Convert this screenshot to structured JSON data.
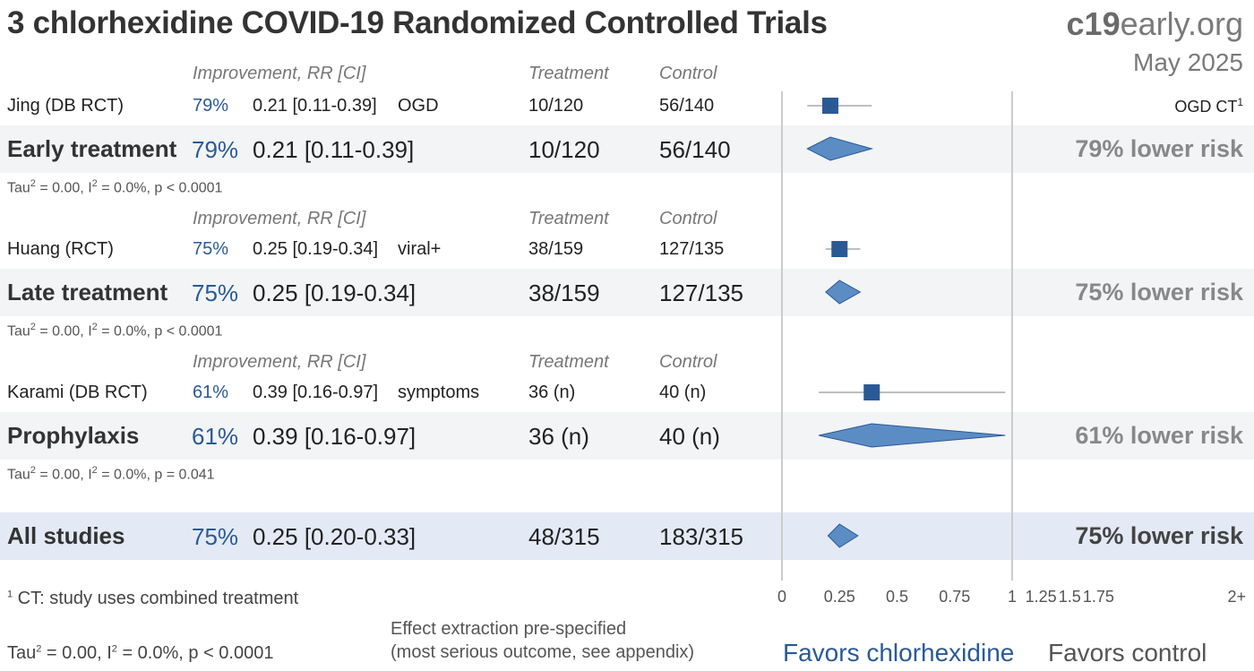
{
  "title": "3 chlorhexidine COVID-19 Randomized Controlled Trials",
  "brand": {
    "bold": "c19",
    "rest": "early.org"
  },
  "date": "May 2025",
  "headers": {
    "improvement": "Improvement, RR [CI]",
    "treatment": "Treatment",
    "control": "Control"
  },
  "groups": [
    {
      "study": {
        "name": "Jing (DB RCT)",
        "improvement": "79%",
        "rr": "0.21 [0.11-0.39]",
        "outcome": "OGD",
        "treatment": "10/120",
        "control": "56/140",
        "note": "OGD CT",
        "note_sup": "1"
      },
      "summary": {
        "label": "Early treatment",
        "improvement": "79%",
        "rr": "0.21 [0.11-0.39]",
        "treatment": "10/120",
        "control": "56/140",
        "risk": "79% lower risk"
      },
      "het": {
        "tau": "Tau",
        "tau_sup": "2",
        "tau_val": " = 0.00, I",
        "i_sup": "2",
        "rest": " = 0.0%, p < 0.0001"
      }
    },
    {
      "study": {
        "name": "Huang (RCT)",
        "improvement": "75%",
        "rr": "0.25 [0.19-0.34]",
        "outcome": "viral+",
        "treatment": "38/159",
        "control": "127/135"
      },
      "summary": {
        "label": "Late treatment",
        "improvement": "75%",
        "rr": "0.25 [0.19-0.34]",
        "treatment": "38/159",
        "control": "127/135",
        "risk": "75% lower risk"
      },
      "het": {
        "tau": "Tau",
        "tau_sup": "2",
        "tau_val": " = 0.00, I",
        "i_sup": "2",
        "rest": " = 0.0%, p < 0.0001"
      }
    },
    {
      "study": {
        "name": "Karami (DB RCT)",
        "improvement": "61%",
        "rr": "0.39 [0.16-0.97]",
        "outcome": "symptoms",
        "treatment": "36 (n)",
        "control": "40 (n)"
      },
      "summary": {
        "label": "Prophylaxis",
        "improvement": "61%",
        "rr": "0.39 [0.16-0.97]",
        "treatment": "36 (n)",
        "control": "40 (n)",
        "risk": "61% lower risk"
      },
      "het": {
        "tau": "Tau",
        "tau_sup": "2",
        "tau_val": " = 0.00, I",
        "i_sup": "2",
        "rest": " = 0.0%, p = 0.041"
      }
    }
  ],
  "all": {
    "label": "All studies",
    "improvement": "75%",
    "rr": "0.25 [0.20-0.33]",
    "treatment": "48/315",
    "control": "183/315",
    "risk": "75% lower risk"
  },
  "footnote": {
    "sup": "1",
    "text": " CT: study uses combined treatment"
  },
  "overall_het": {
    "tau": "Tau",
    "tau_sup": "2",
    "tau_val": " = 0.00, I",
    "i_sup": "2",
    "rest": " = 0.0%, p < 0.0001"
  },
  "extraction_note": {
    "line1": "Effect extraction pre-specified",
    "line2": "(most serious outcome, see appendix)"
  },
  "favors": {
    "left": "Favors chlorhexidine",
    "right": "Favors control"
  },
  "colors": {
    "marker": "#2a5a96",
    "diamond": "#5b8cc4",
    "diamond_stroke": "#2a5a96",
    "whisker": "#aaaaaa",
    "axis": "#cccccc"
  },
  "chart_data": {
    "type": "forest",
    "x_ticks": [
      "0",
      "0.25",
      "0.5",
      "0.75",
      "1",
      "1.25",
      "1.5",
      "1.75",
      "2+"
    ],
    "studies": [
      {
        "name": "Jing (DB RCT)",
        "rr": 0.21,
        "lo": 0.11,
        "hi": 0.39
      },
      {
        "name": "Huang (RCT)",
        "rr": 0.25,
        "lo": 0.19,
        "hi": 0.34
      },
      {
        "name": "Karami (DB RCT)",
        "rr": 0.39,
        "lo": 0.16,
        "hi": 0.97
      }
    ],
    "summaries": [
      {
        "name": "Early treatment",
        "rr": 0.21,
        "lo": 0.11,
        "hi": 0.39
      },
      {
        "name": "Late treatment",
        "rr": 0.25,
        "lo": 0.19,
        "hi": 0.34
      },
      {
        "name": "Prophylaxis",
        "rr": 0.39,
        "lo": 0.16,
        "hi": 0.97
      },
      {
        "name": "All studies",
        "rr": 0.25,
        "lo": 0.2,
        "hi": 0.33
      }
    ]
  }
}
